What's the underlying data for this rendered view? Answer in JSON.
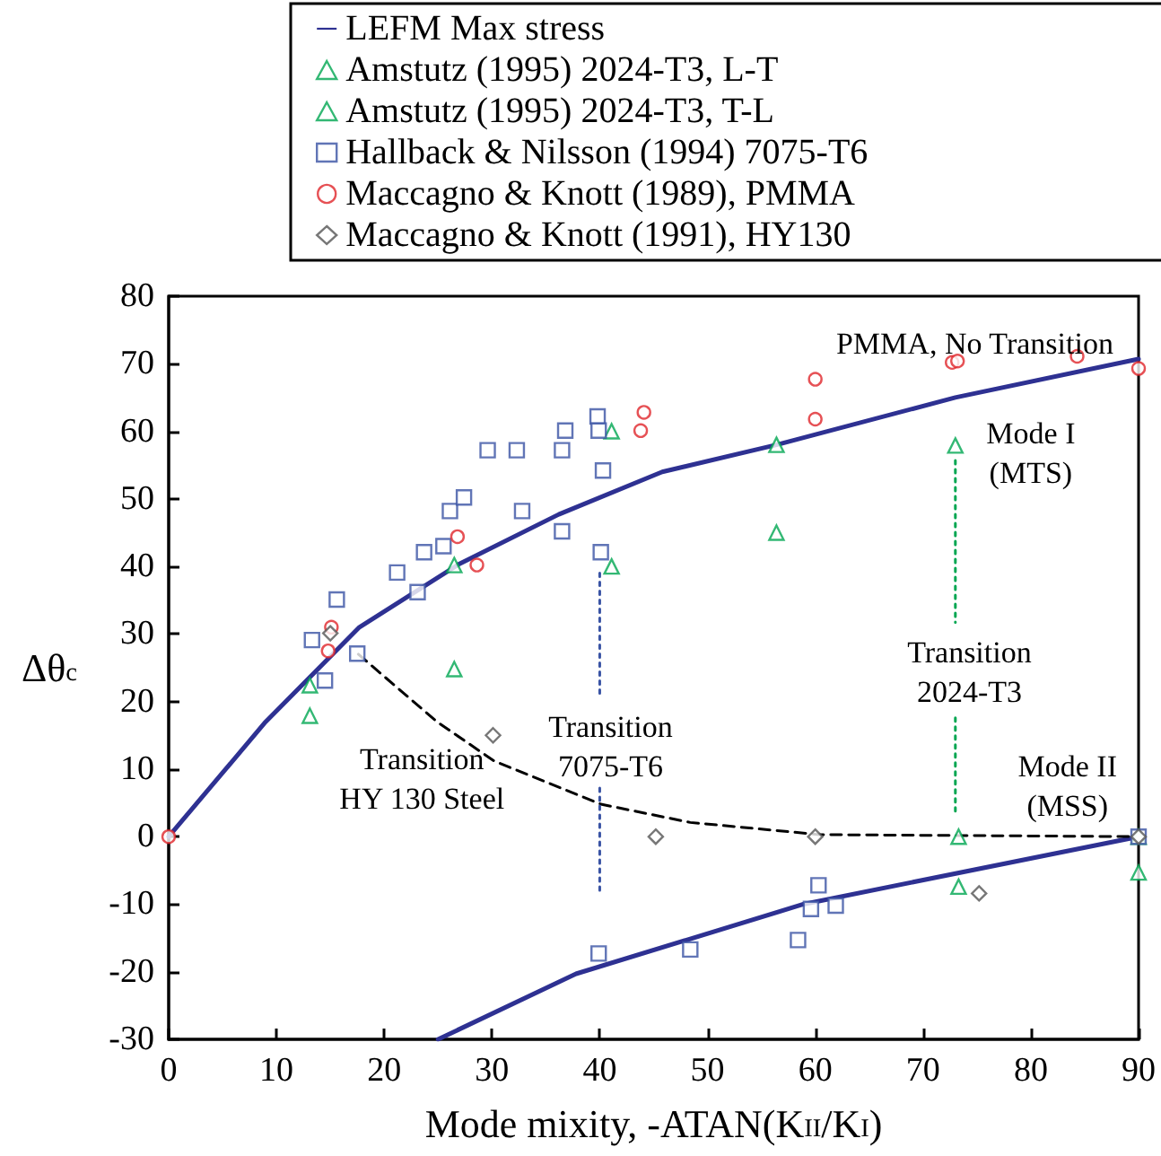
{
  "chart_data": {
    "type": "scatter",
    "xlabel": "Mode mixity, -ATAN(K$_{II}$/K$_{I}$)",
    "ylabel": "Δθ$_{c}$",
    "xlim": [
      0,
      90
    ],
    "xticks": [
      0,
      10,
      20,
      30,
      40,
      50,
      60,
      70,
      80,
      90
    ],
    "ylim": [
      -30,
      80
    ],
    "yticks": [
      -30,
      -20,
      -10,
      0,
      10,
      20,
      30,
      40,
      50,
      60,
      70,
      80
    ],
    "grid": false,
    "legend": "top",
    "series": [
      {
        "name": "LEFM Max stress",
        "type": "line",
        "color": "#2e3192",
        "marker": "none",
        "line_style": "solid",
        "x": [
          0,
          9,
          17.7,
          26.9,
          36.2,
          45.8,
          56.4,
          73,
          90
        ],
        "values": [
          0,
          17,
          31,
          40.3,
          47.7,
          54,
          58,
          65,
          70.7
        ]
      },
      {
        "type": "line",
        "color": "#2e3192",
        "marker": "none",
        "line_style": "solid",
        "x": [
          25,
          37.8,
          58.9,
          90
        ],
        "values": [
          -30,
          -20.3,
          -10,
          0
        ]
      },
      {
        "name": "Amstutz (1995) 2024-T3, L-T",
        "color": "#00a651",
        "marker": "triangle",
        "x": [
          13.1,
          26.5,
          41.1,
          56.4,
          73.3,
          90
        ],
        "values": [
          22.4,
          40.2,
          60,
          58,
          0,
          0
        ]
      },
      {
        "name": "Amstutz (1995) 2024-T3, T-L",
        "color": "#00a651",
        "marker": "triangle",
        "x": [
          13.1,
          26.5,
          41.1,
          56.4,
          73,
          73.3,
          90
        ],
        "values": [
          17.9,
          24.8,
          40,
          45,
          57.9,
          -7.4,
          -5.3
        ]
      },
      {
        "name": "Hallback & Nilsson (1994) 7075-T6",
        "color": "#3953a4",
        "marker": "square",
        "x": [
          13.3,
          14.5,
          15.6,
          17.5,
          21.2,
          23.1,
          23.7,
          25.5,
          26.1,
          27.4,
          29.6,
          32.3,
          32.8,
          36.5,
          36.5,
          36.8,
          39.8,
          39.9,
          40.3,
          40.1,
          39.9,
          48.4,
          58.4,
          59.6,
          60.3,
          61.9,
          90
        ],
        "values": [
          29.1,
          23.1,
          35.1,
          27.1,
          39.1,
          36.2,
          42.1,
          43,
          48.2,
          50.2,
          57.2,
          57.2,
          48.2,
          57.2,
          45.2,
          60.1,
          62.2,
          60.1,
          54.2,
          42.1,
          -17.3,
          -16.7,
          -15.3,
          -10.7,
          -7.2,
          -10.2,
          0
        ]
      },
      {
        "name": "Maccagno & Knott (1989), PMMA",
        "color": "#e0262b",
        "marker": "circle",
        "x": [
          0,
          15.1,
          14.8,
          26.8,
          28.6,
          43.8,
          44.1,
          60,
          60,
          72.7,
          73.2,
          84.3,
          90
        ],
        "values": [
          0,
          31,
          27.5,
          44.4,
          40.2,
          60.1,
          62.8,
          67.7,
          61.8,
          70.2,
          70.4,
          71.1,
          69.3
        ]
      },
      {
        "name": "Maccagno & Knott (1991), HY130",
        "color": "#555555",
        "marker": "diamond",
        "x": [
          15,
          30.1,
          45.2,
          60,
          75.2,
          90
        ],
        "values": [
          30.1,
          15,
          0,
          0,
          -8.4,
          0
        ]
      },
      {
        "type": "line",
        "color": "#000000",
        "marker": "none",
        "line_style": "dashed",
        "x": [
          17.6,
          24.9,
          30.2,
          40.1,
          48.4,
          60.4,
          90
        ],
        "values": [
          27,
          17,
          11.2,
          4.8,
          2.1,
          0.3,
          0
        ]
      },
      {
        "type": "line",
        "color": "#3953a4",
        "marker": "none",
        "line_style": "dotted",
        "x": [
          40,
          40
        ],
        "values": [
          39,
          20.5
        ]
      },
      {
        "type": "line",
        "color": "#3953a4",
        "marker": "none",
        "line_style": "dotted",
        "x": [
          40,
          40
        ],
        "values": [
          7.2,
          -8.3
        ]
      },
      {
        "type": "line",
        "color": "#00a651",
        "marker": "none",
        "line_style": "dotted",
        "x": [
          73,
          73
        ],
        "values": [
          55.7,
          31.7
        ]
      },
      {
        "type": "line",
        "color": "#00a651",
        "marker": "none",
        "line_style": "dotted",
        "x": [
          73,
          73
        ],
        "values": [
          17.6,
          3.2
        ]
      }
    ],
    "annotations": [
      "PMMA, No Transition",
      "Mode I\n(MTS)",
      "Transition\n2024-T3",
      "Transition\n7075-T6",
      "Transition\nHY 130 Steel",
      "Mode II\n(MSS)"
    ]
  }
}
